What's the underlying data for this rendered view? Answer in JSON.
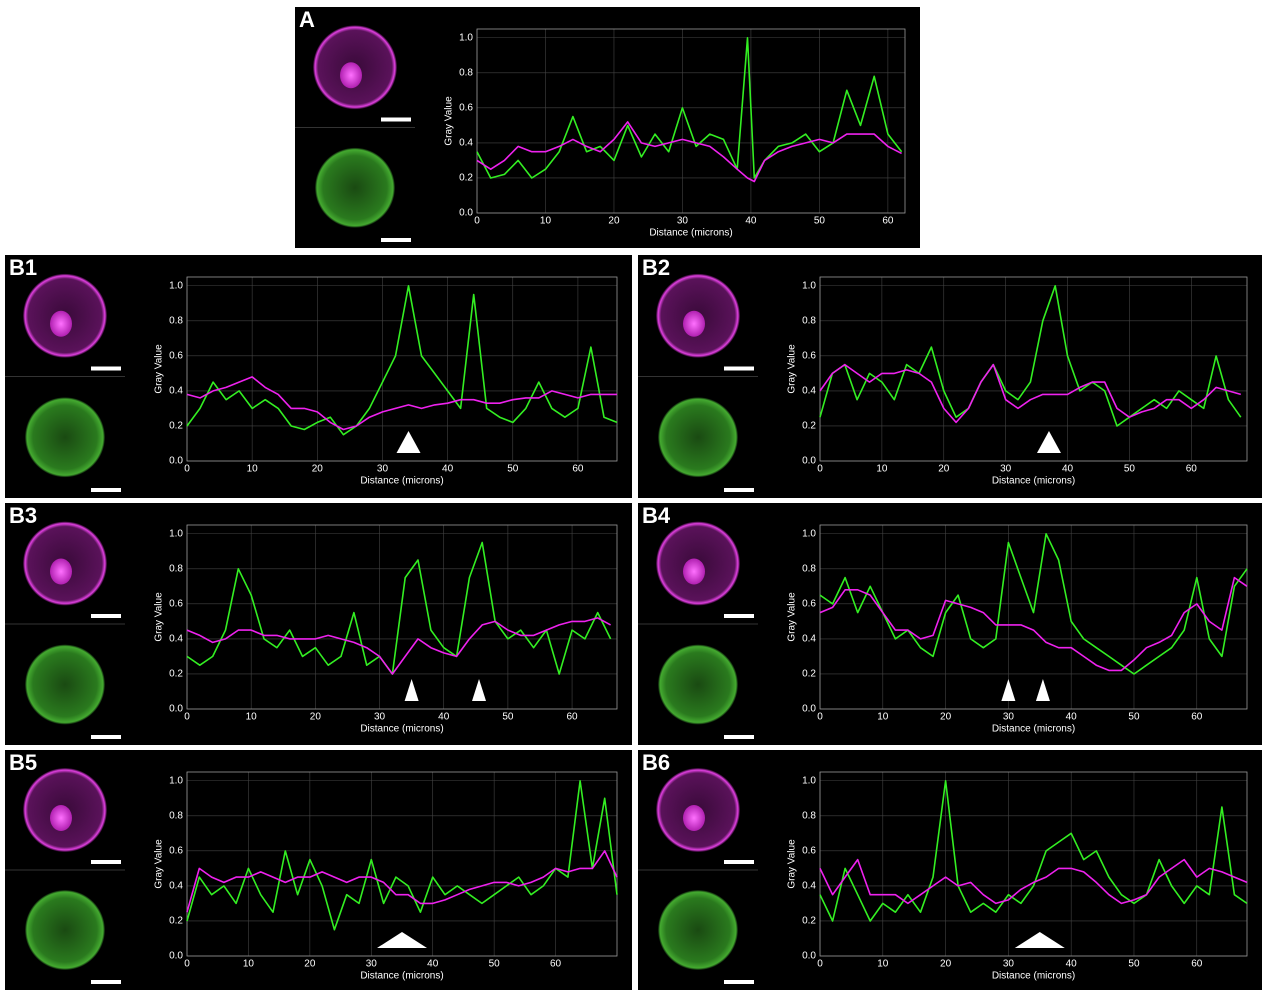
{
  "chart_data": [
    {
      "type": "line",
      "label": "A",
      "xlabel": "Distance (microns)",
      "ylabel": "Gray Value",
      "grid": true,
      "xlim": [
        0,
        62.5
      ],
      "ylim": [
        0,
        1.05
      ],
      "xticks": [
        0,
        10,
        20,
        30,
        40,
        50,
        60
      ],
      "yticks": [
        {
          "value": 0,
          "label": "0.0"
        },
        0.2,
        0.4,
        0.6,
        0.8,
        {
          "value": 1,
          "label": "1.0"
        }
      ],
      "x": [
        0,
        2,
        4,
        6,
        8,
        10,
        12,
        14,
        16,
        18,
        20,
        22,
        24,
        26,
        28,
        30,
        32,
        34,
        36,
        38,
        39.5,
        40.5,
        42,
        44,
        46,
        48,
        50,
        52,
        54,
        56,
        58,
        60,
        62
      ],
      "series": [
        {
          "color": "#33ee22",
          "values": [
            0.35,
            0.2,
            0.22,
            0.3,
            0.2,
            0.25,
            0.35,
            0.55,
            0.35,
            0.38,
            0.3,
            0.5,
            0.32,
            0.45,
            0.35,
            0.6,
            0.38,
            0.45,
            0.42,
            0.25,
            1.0,
            0.2,
            0.3,
            0.38,
            0.4,
            0.45,
            0.35,
            0.4,
            0.7,
            0.5,
            0.78,
            0.45,
            0.35
          ]
        },
        {
          "color": "#ee22ee",
          "values": [
            0.3,
            0.25,
            0.3,
            0.38,
            0.35,
            0.35,
            0.38,
            0.42,
            0.38,
            0.35,
            0.42,
            0.52,
            0.4,
            0.38,
            0.4,
            0.42,
            0.4,
            0.38,
            0.32,
            0.25,
            0.2,
            0.18,
            0.3,
            0.35,
            0.38,
            0.4,
            0.42,
            0.4,
            0.45,
            0.45,
            0.45,
            0.38,
            0.34
          ]
        }
      ]
    },
    {
      "type": "line",
      "label": "B1",
      "xlabel": "Distance (microns)",
      "ylabel": "Gray Value",
      "grid": true,
      "xlim": [
        0,
        66
      ],
      "ylim": [
        0,
        1.05
      ],
      "xticks": [
        0,
        10,
        20,
        30,
        40,
        50,
        60
      ],
      "yticks": [
        {
          "value": 0,
          "label": "0.0"
        },
        0.2,
        0.4,
        0.6,
        0.8,
        {
          "value": 1,
          "label": "1.0"
        }
      ],
      "x": [
        0,
        2,
        4,
        6,
        8,
        10,
        12,
        14,
        16,
        18,
        20,
        22,
        24,
        26,
        28,
        30,
        32,
        34,
        36,
        38,
        40,
        42,
        44,
        46,
        48,
        50,
        52,
        54,
        56,
        58,
        60,
        62,
        64,
        66
      ],
      "series": [
        {
          "color": "#33ee22",
          "values": [
            0.2,
            0.3,
            0.45,
            0.35,
            0.4,
            0.3,
            0.35,
            0.3,
            0.2,
            0.18,
            0.22,
            0.25,
            0.15,
            0.2,
            0.3,
            0.45,
            0.6,
            1.0,
            0.6,
            0.5,
            0.4,
            0.3,
            0.95,
            0.3,
            0.25,
            0.22,
            0.3,
            0.45,
            0.3,
            0.25,
            0.3,
            0.65,
            0.25,
            0.22
          ]
        },
        {
          "color": "#ee22ee",
          "values": [
            0.38,
            0.36,
            0.4,
            0.42,
            0.45,
            0.48,
            0.42,
            0.38,
            0.3,
            0.3,
            0.28,
            0.22,
            0.18,
            0.2,
            0.25,
            0.28,
            0.3,
            0.32,
            0.3,
            0.32,
            0.33,
            0.35,
            0.35,
            0.33,
            0.33,
            0.35,
            0.36,
            0.36,
            0.4,
            0.38,
            0.36,
            0.38,
            0.38,
            0.38
          ]
        }
      ]
    },
    {
      "type": "line",
      "label": "B2",
      "xlabel": "Distance (microns)",
      "ylabel": "Gray Value",
      "grid": true,
      "xlim": [
        0,
        69
      ],
      "ylim": [
        0,
        1.05
      ],
      "xticks": [
        0,
        10,
        20,
        30,
        40,
        50,
        60
      ],
      "yticks": [
        {
          "value": 0,
          "label": "0.0"
        },
        0.2,
        0.4,
        0.6,
        0.8,
        {
          "value": 1,
          "label": "1.0"
        }
      ],
      "x": [
        0,
        2,
        4,
        6,
        8,
        10,
        12,
        14,
        16,
        18,
        20,
        22,
        24,
        26,
        28,
        30,
        32,
        34,
        36,
        38,
        40,
        42,
        44,
        46,
        48,
        50,
        52,
        54,
        56,
        58,
        60,
        62,
        64,
        66,
        68
      ],
      "series": [
        {
          "color": "#33ee22",
          "values": [
            0.25,
            0.5,
            0.55,
            0.35,
            0.5,
            0.45,
            0.35,
            0.55,
            0.5,
            0.65,
            0.4,
            0.25,
            0.3,
            0.45,
            0.55,
            0.4,
            0.35,
            0.45,
            0.8,
            1.0,
            0.6,
            0.4,
            0.45,
            0.4,
            0.2,
            0.25,
            0.3,
            0.35,
            0.3,
            0.4,
            0.35,
            0.3,
            0.6,
            0.35,
            0.25
          ]
        },
        {
          "color": "#ee22ee",
          "values": [
            0.4,
            0.5,
            0.55,
            0.5,
            0.45,
            0.5,
            0.5,
            0.52,
            0.5,
            0.45,
            0.3,
            0.22,
            0.3,
            0.45,
            0.55,
            0.35,
            0.3,
            0.35,
            0.38,
            0.38,
            0.38,
            0.42,
            0.45,
            0.45,
            0.3,
            0.25,
            0.28,
            0.3,
            0.35,
            0.35,
            0.3,
            0.35,
            0.42,
            0.4,
            0.38
          ]
        }
      ]
    },
    {
      "type": "line",
      "label": "B3",
      "xlabel": "Distance (microns)",
      "ylabel": "Gray Value",
      "grid": true,
      "xlim": [
        0,
        67
      ],
      "ylim": [
        0,
        1.05
      ],
      "xticks": [
        0,
        10,
        20,
        30,
        40,
        50,
        60
      ],
      "yticks": [
        {
          "value": 0,
          "label": "0.0"
        },
        0.2,
        0.4,
        0.6,
        0.8,
        {
          "value": 1,
          "label": "1.0"
        }
      ],
      "x": [
        0,
        2,
        4,
        6,
        8,
        10,
        12,
        14,
        16,
        18,
        20,
        22,
        24,
        26,
        28,
        30,
        32,
        34,
        36,
        38,
        40,
        42,
        44,
        46,
        48,
        50,
        52,
        54,
        56,
        58,
        60,
        62,
        64,
        66
      ],
      "series": [
        {
          "color": "#33ee22",
          "values": [
            0.3,
            0.25,
            0.3,
            0.45,
            0.8,
            0.65,
            0.4,
            0.35,
            0.45,
            0.3,
            0.35,
            0.25,
            0.3,
            0.55,
            0.25,
            0.3,
            0.2,
            0.75,
            0.85,
            0.45,
            0.35,
            0.3,
            0.75,
            0.95,
            0.5,
            0.4,
            0.45,
            0.35,
            0.45,
            0.2,
            0.45,
            0.4,
            0.55,
            0.4
          ]
        },
        {
          "color": "#ee22ee",
          "values": [
            0.45,
            0.42,
            0.38,
            0.4,
            0.45,
            0.45,
            0.42,
            0.42,
            0.4,
            0.4,
            0.4,
            0.42,
            0.4,
            0.38,
            0.35,
            0.3,
            0.2,
            0.3,
            0.4,
            0.35,
            0.32,
            0.3,
            0.4,
            0.48,
            0.5,
            0.45,
            0.42,
            0.42,
            0.45,
            0.48,
            0.5,
            0.5,
            0.52,
            0.48
          ]
        }
      ]
    },
    {
      "type": "line",
      "label": "B4",
      "xlabel": "Distance (microns)",
      "ylabel": "Gray Value",
      "grid": true,
      "xlim": [
        0,
        68
      ],
      "ylim": [
        0,
        1.05
      ],
      "xticks": [
        0,
        10,
        20,
        30,
        40,
        50,
        60
      ],
      "yticks": [
        {
          "value": 0,
          "label": "0.0"
        },
        0.2,
        0.4,
        0.6,
        0.8,
        {
          "value": 1,
          "label": "1.0"
        }
      ],
      "x": [
        0,
        2,
        4,
        6,
        8,
        10,
        12,
        14,
        16,
        18,
        20,
        22,
        24,
        26,
        28,
        30,
        32,
        34,
        36,
        38,
        40,
        42,
        44,
        46,
        48,
        50,
        52,
        54,
        56,
        58,
        60,
        62,
        64,
        66,
        68
      ],
      "series": [
        {
          "color": "#33ee22",
          "values": [
            0.65,
            0.6,
            0.75,
            0.55,
            0.7,
            0.55,
            0.4,
            0.45,
            0.35,
            0.3,
            0.55,
            0.65,
            0.4,
            0.35,
            0.4,
            0.95,
            0.75,
            0.55,
            1.0,
            0.85,
            0.5,
            0.4,
            0.35,
            0.3,
            0.25,
            0.2,
            0.25,
            0.3,
            0.35,
            0.45,
            0.75,
            0.4,
            0.3,
            0.7,
            0.8
          ]
        },
        {
          "color": "#ee22ee",
          "values": [
            0.55,
            0.58,
            0.68,
            0.68,
            0.65,
            0.55,
            0.45,
            0.45,
            0.4,
            0.42,
            0.62,
            0.6,
            0.58,
            0.55,
            0.48,
            0.48,
            0.48,
            0.45,
            0.38,
            0.35,
            0.35,
            0.3,
            0.25,
            0.22,
            0.22,
            0.28,
            0.35,
            0.38,
            0.42,
            0.55,
            0.6,
            0.5,
            0.45,
            0.75,
            0.7
          ]
        }
      ]
    },
    {
      "type": "line",
      "label": "B5",
      "xlabel": "Distance (microns)",
      "ylabel": "Gray Value",
      "grid": true,
      "xlim": [
        0,
        70
      ],
      "ylim": [
        0,
        1.05
      ],
      "xticks": [
        0,
        10,
        20,
        30,
        40,
        50,
        60
      ],
      "yticks": [
        {
          "value": 0,
          "label": "0.0"
        },
        0.2,
        0.4,
        0.6,
        0.8,
        {
          "value": 1,
          "label": "1.0"
        }
      ],
      "x": [
        0,
        2,
        4,
        6,
        8,
        10,
        12,
        14,
        16,
        18,
        20,
        22,
        24,
        26,
        28,
        30,
        32,
        34,
        36,
        38,
        40,
        42,
        44,
        46,
        48,
        50,
        52,
        54,
        56,
        58,
        60,
        62,
        64,
        66,
        68,
        70
      ],
      "series": [
        {
          "color": "#33ee22",
          "values": [
            0.2,
            0.45,
            0.35,
            0.4,
            0.3,
            0.5,
            0.35,
            0.25,
            0.6,
            0.35,
            0.55,
            0.4,
            0.15,
            0.35,
            0.3,
            0.55,
            0.3,
            0.45,
            0.4,
            0.25,
            0.45,
            0.35,
            0.4,
            0.35,
            0.3,
            0.35,
            0.4,
            0.45,
            0.35,
            0.4,
            0.5,
            0.45,
            1.0,
            0.5,
            0.9,
            0.35
          ]
        },
        {
          "color": "#ee22ee",
          "values": [
            0.25,
            0.5,
            0.45,
            0.42,
            0.45,
            0.45,
            0.48,
            0.45,
            0.42,
            0.45,
            0.45,
            0.48,
            0.45,
            0.42,
            0.45,
            0.45,
            0.42,
            0.35,
            0.35,
            0.3,
            0.3,
            0.32,
            0.35,
            0.38,
            0.4,
            0.42,
            0.42,
            0.4,
            0.42,
            0.45,
            0.5,
            0.48,
            0.5,
            0.5,
            0.6,
            0.45
          ]
        }
      ]
    },
    {
      "type": "line",
      "label": "B6",
      "xlabel": "Distance (microns)",
      "ylabel": "Gray Value",
      "grid": true,
      "xlim": [
        0,
        68
      ],
      "ylim": [
        0,
        1.05
      ],
      "xticks": [
        0,
        10,
        20,
        30,
        40,
        50,
        60
      ],
      "yticks": [
        {
          "value": 0,
          "label": "0.0"
        },
        0.2,
        0.4,
        0.6,
        0.8,
        {
          "value": 1,
          "label": "1.0"
        }
      ],
      "x": [
        0,
        2,
        4,
        6,
        8,
        10,
        12,
        14,
        16,
        18,
        20,
        22,
        24,
        26,
        28,
        30,
        32,
        34,
        36,
        38,
        40,
        42,
        44,
        46,
        48,
        50,
        52,
        54,
        56,
        58,
        60,
        62,
        64,
        66,
        68
      ],
      "series": [
        {
          "color": "#33ee22",
          "values": [
            0.35,
            0.2,
            0.5,
            0.35,
            0.2,
            0.3,
            0.25,
            0.35,
            0.25,
            0.45,
            1.0,
            0.4,
            0.25,
            0.3,
            0.25,
            0.35,
            0.3,
            0.4,
            0.6,
            0.65,
            0.7,
            0.55,
            0.6,
            0.45,
            0.35,
            0.3,
            0.35,
            0.55,
            0.4,
            0.3,
            0.4,
            0.35,
            0.85,
            0.35,
            0.3
          ]
        },
        {
          "color": "#ee22ee",
          "values": [
            0.5,
            0.35,
            0.45,
            0.55,
            0.35,
            0.35,
            0.35,
            0.3,
            0.35,
            0.4,
            0.45,
            0.4,
            0.42,
            0.35,
            0.3,
            0.32,
            0.38,
            0.42,
            0.45,
            0.5,
            0.5,
            0.48,
            0.42,
            0.35,
            0.3,
            0.32,
            0.35,
            0.45,
            0.5,
            0.55,
            0.45,
            0.5,
            0.48,
            0.45,
            0.42
          ]
        }
      ]
    }
  ]
}
